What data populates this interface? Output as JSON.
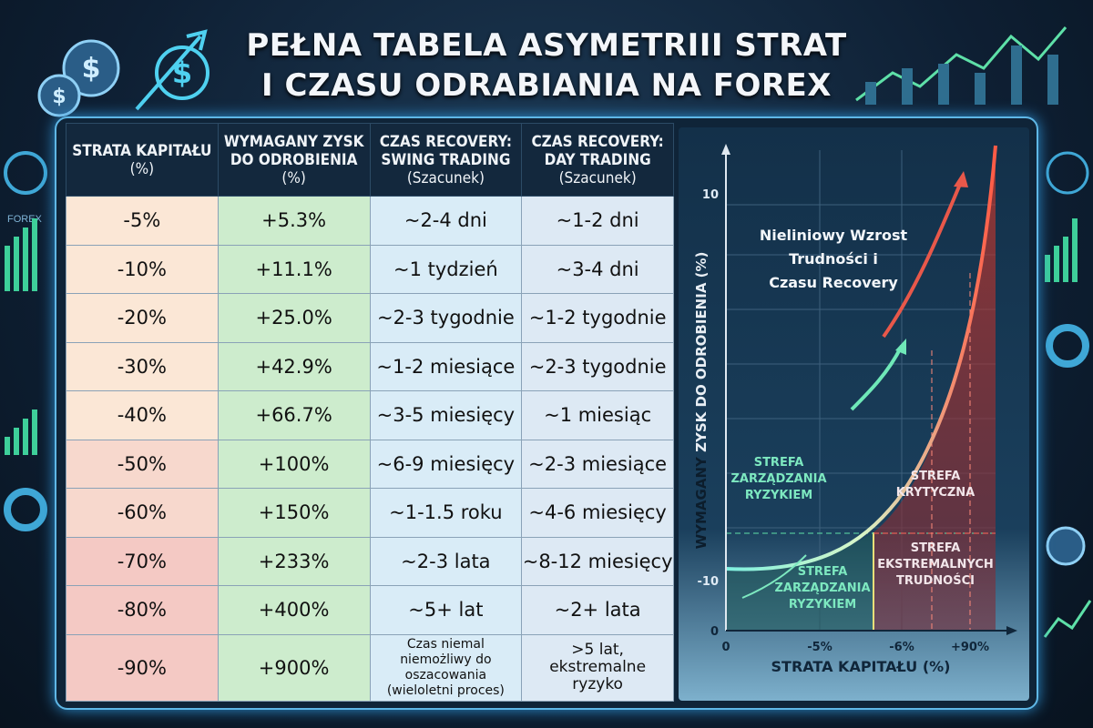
{
  "title": {
    "line1": "PEŁNA TABELA ASYMETRIII STRAT",
    "line2": "I CZASU ODRABIANIA NA FOREX"
  },
  "table": {
    "headers": [
      {
        "main": "STRATA KAPITAŁU",
        "sub": "(%)"
      },
      {
        "main": "WYMAGANY ZYSK DO ODROBIENIA",
        "sub": "(%)"
      },
      {
        "main": "CZAS RECOVERY: SWING TRADING",
        "sub": "(Szacunek)"
      },
      {
        "main": "CZAS RECOVERY: DAY TRADING",
        "sub": "(Szacunek)"
      }
    ],
    "rows": [
      [
        "-5%",
        "+5.3%",
        "~2-4 dni",
        "~1-2 dni"
      ],
      [
        "-10%",
        "+11.1%",
        "~1 tydzień",
        "~3-4 dni"
      ],
      [
        "-20%",
        "+25.0%",
        "~2-3 tygodnie",
        "~1-2 tygodnie"
      ],
      [
        "-30%",
        "+42.9%",
        "~1-2 miesiące",
        "~2-3 tygodnie"
      ],
      [
        "-40%",
        "+66.7%",
        "~3-5 miesięcy",
        "~1 miesiąc"
      ],
      [
        "-50%",
        "+100%",
        "~6-9 miesięcy",
        "~2-3 miesiące"
      ],
      [
        "-60%",
        "+150%",
        "~1-1.5 roku",
        "~4-6 miesięcy"
      ],
      [
        "-70%",
        "+233%",
        "~2-3 lata",
        "~8-12 miesięcy"
      ],
      [
        "-80%",
        "+400%",
        "~5+ lat",
        "~2+ lata"
      ],
      [
        "-90%",
        "+900%",
        "Czas niemal niemożliwy do oszacowania (wieloletni proces)",
        ">5 lat, ekstremalne ryzyko"
      ]
    ]
  },
  "chart": {
    "annotation": [
      "Nieliniowy Wzrost",
      "Trudności i",
      "Czasu Recovery"
    ],
    "ylabel_a": "WYMAGANY ",
    "ylabel_b": "ZYSK DO ODROBIENIA (%)",
    "xlabel": "STRATA KAPITAŁU (%)",
    "y_ticks": [
      "10",
      "-10",
      "0"
    ],
    "x_ticks": [
      "0",
      "-5%",
      "-6%",
      "+90%"
    ],
    "zone_green_upper": [
      "STREFA",
      "ZARZĄDZANIA",
      "RYZYKIEM"
    ],
    "zone_green_lower": [
      "STREFA",
      "ZARZĄDZANIA",
      "RYZYKIEM"
    ],
    "zone_critical": [
      "STREFA",
      "KRYTYCZNA"
    ],
    "zone_extreme": [
      "STREFA",
      "EKSTREMALNYCH",
      "TRUDNOŚCI"
    ],
    "colors": {
      "green": "#7de8c0",
      "red": "#f0604a"
    }
  },
  "decor": {
    "forex_label": "FOREX",
    "dollar": "$"
  }
}
